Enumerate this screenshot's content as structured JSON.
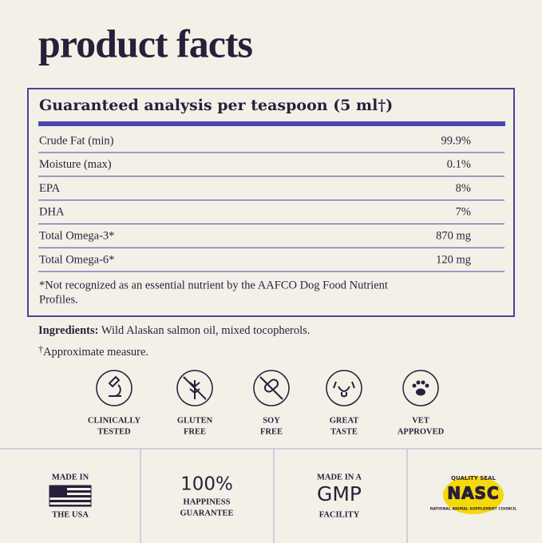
{
  "header": {
    "title": "product facts"
  },
  "analysis": {
    "heading": "Guaranteed analysis per teaspoon (5 ml†)",
    "rows": [
      [
        "Crude Fat (min)",
        "99.9%"
      ],
      [
        "Moisture (max)",
        "0.1%"
      ],
      [
        "EPA",
        "8%"
      ],
      [
        "DHA",
        "7%"
      ],
      [
        "Total Omega-3*",
        "870 mg"
      ],
      [
        "Total Omega-6*",
        "120 mg"
      ]
    ],
    "footnote": [
      "*Not recognized as an essential nutrient by the AAFCO Dog Food Nutrient",
      "Profiles."
    ]
  },
  "ingredients": {
    "label": "Ingredients:",
    "text": "Wild Alaskan salmon oil, mixed tocopherols."
  },
  "measure_note": {
    "mark": "†",
    "text": "Approximate measure."
  },
  "badges": [
    [
      "CLINICALLY",
      "TESTED"
    ],
    [
      "GLUTEN",
      "FREE"
    ],
    [
      "SOY",
      "FREE"
    ],
    [
      "GREAT",
      "TASTE"
    ],
    [
      "VET",
      "APPROVED"
    ]
  ],
  "seals": [
    {
      "lines": [
        "MADE IN",
        "THE USA"
      ]
    },
    {
      "big": "100%",
      "lines": [
        "HAPPINESS",
        "GUARANTEE"
      ]
    },
    {
      "small": "MADE IN A",
      "big": "GMP",
      "lines": [
        "FACILITY"
      ]
    },
    {
      "top": "QUALITY SEAL",
      "big": "NASC",
      "bottom": "NATIONAL ANIMAL SUPPLEMENT COUNCIL"
    }
  ]
}
